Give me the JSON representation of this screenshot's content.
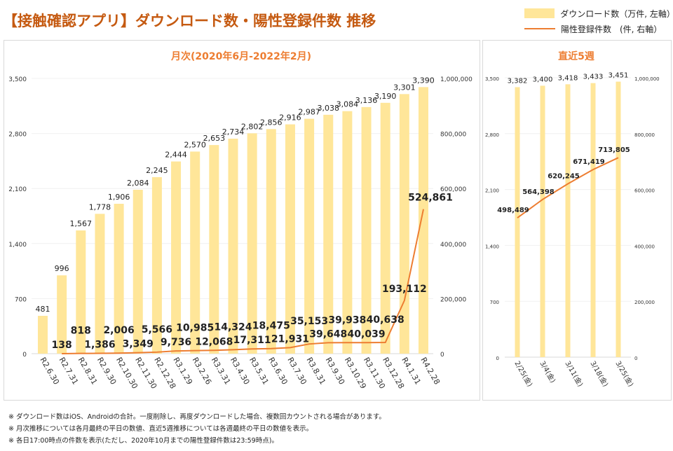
{
  "title": "【接触確認アプリ】ダウンロード数・陽性登録件数 推移",
  "legend": {
    "bars": "ダウンロード数（万件, 左軸）",
    "line": "陽性登録件数　(件, 右軸）"
  },
  "colors": {
    "bar": "#ffe699",
    "line": "#ed7d31",
    "title": "#c55a11"
  },
  "notes": [
    "※ ダウンロード数はiOS、Androidの合計。一度削除し、再度ダウンロードした場合、複数回カウントされる場合があります。",
    "※ 月次推移については各月最終の平日の数値、直近5週推移については各週最終の平日の数値を表示。",
    "※ 各日17:00時点の件数を表示(ただし、2020年10月までの陽性登録件数は23:59時点)。"
  ],
  "chart_data": [
    {
      "type": "bar+line",
      "title": "月次(2020年6月-2022年2月)",
      "categories": [
        "R2.6.30",
        "R2.7.31",
        "R2.8.31",
        "R2.9.30",
        "R2.10.30",
        "R2.11.30",
        "R2.12.28",
        "R3.1.29",
        "R3.2.26",
        "R3.3.31",
        "R3.4.30",
        "R3.5.31",
        "R3.6.30",
        "R3.7.30",
        "R3.8.31",
        "R3.9.30",
        "R3.10.29",
        "R3.11.30",
        "R3.12.28",
        "R4.1.31",
        "R4.2.28"
      ],
      "series": [
        {
          "name": "ダウンロード数（万件, 左軸）",
          "axis": "left",
          "values": [
            481,
            996,
            1567,
            1778,
            1906,
            2084,
            2245,
            2444,
            2570,
            2653,
            2734,
            2802,
            2856,
            2916,
            2987,
            3038,
            3084,
            3136,
            3190,
            3301,
            3390
          ]
        },
        {
          "name": "陽性登録件数　(件, 右軸）",
          "axis": "right",
          "values": [
            null,
            138,
            818,
            1386,
            2006,
            3349,
            5566,
            9736,
            10985,
            12068,
            14324,
            17311,
            18475,
            21931,
            35153,
            39648,
            39938,
            40039,
            40638,
            193112,
            524861
          ]
        }
      ],
      "ylim_left": [
        0,
        3500
      ],
      "yticks_left": [
        "0",
        "700",
        "1,400",
        "2,100",
        "2,800",
        "3,500"
      ],
      "ylim_right": [
        0,
        1000000
      ],
      "yticks_right": [
        "0",
        "200,000",
        "400,000",
        "600,000",
        "800,000",
        "1,000,000"
      ]
    },
    {
      "type": "bar+line",
      "title": "直近5週",
      "categories": [
        "2/25(金)",
        "3/4(金)",
        "3/11(金)",
        "3/18(金)",
        "3/25(金)"
      ],
      "series": [
        {
          "name": "ダウンロード数（万件, 左軸）",
          "axis": "left",
          "values": [
            3382,
            3400,
            3418,
            3433,
            3451
          ]
        },
        {
          "name": "陽性登録件数　(件, 右軸）",
          "axis": "right",
          "values": [
            498489,
            564398,
            620245,
            671419,
            713805
          ]
        }
      ],
      "ylim_left": [
        0,
        3500
      ],
      "yticks_left": [
        "0",
        "700",
        "1,400",
        "2,100",
        "2,800",
        "3,500"
      ],
      "ylim_right": [
        0,
        1000000
      ],
      "yticks_right": [
        "0",
        "200,000",
        "400,000",
        "600,000",
        "800,000",
        "1,000,000"
      ]
    }
  ]
}
